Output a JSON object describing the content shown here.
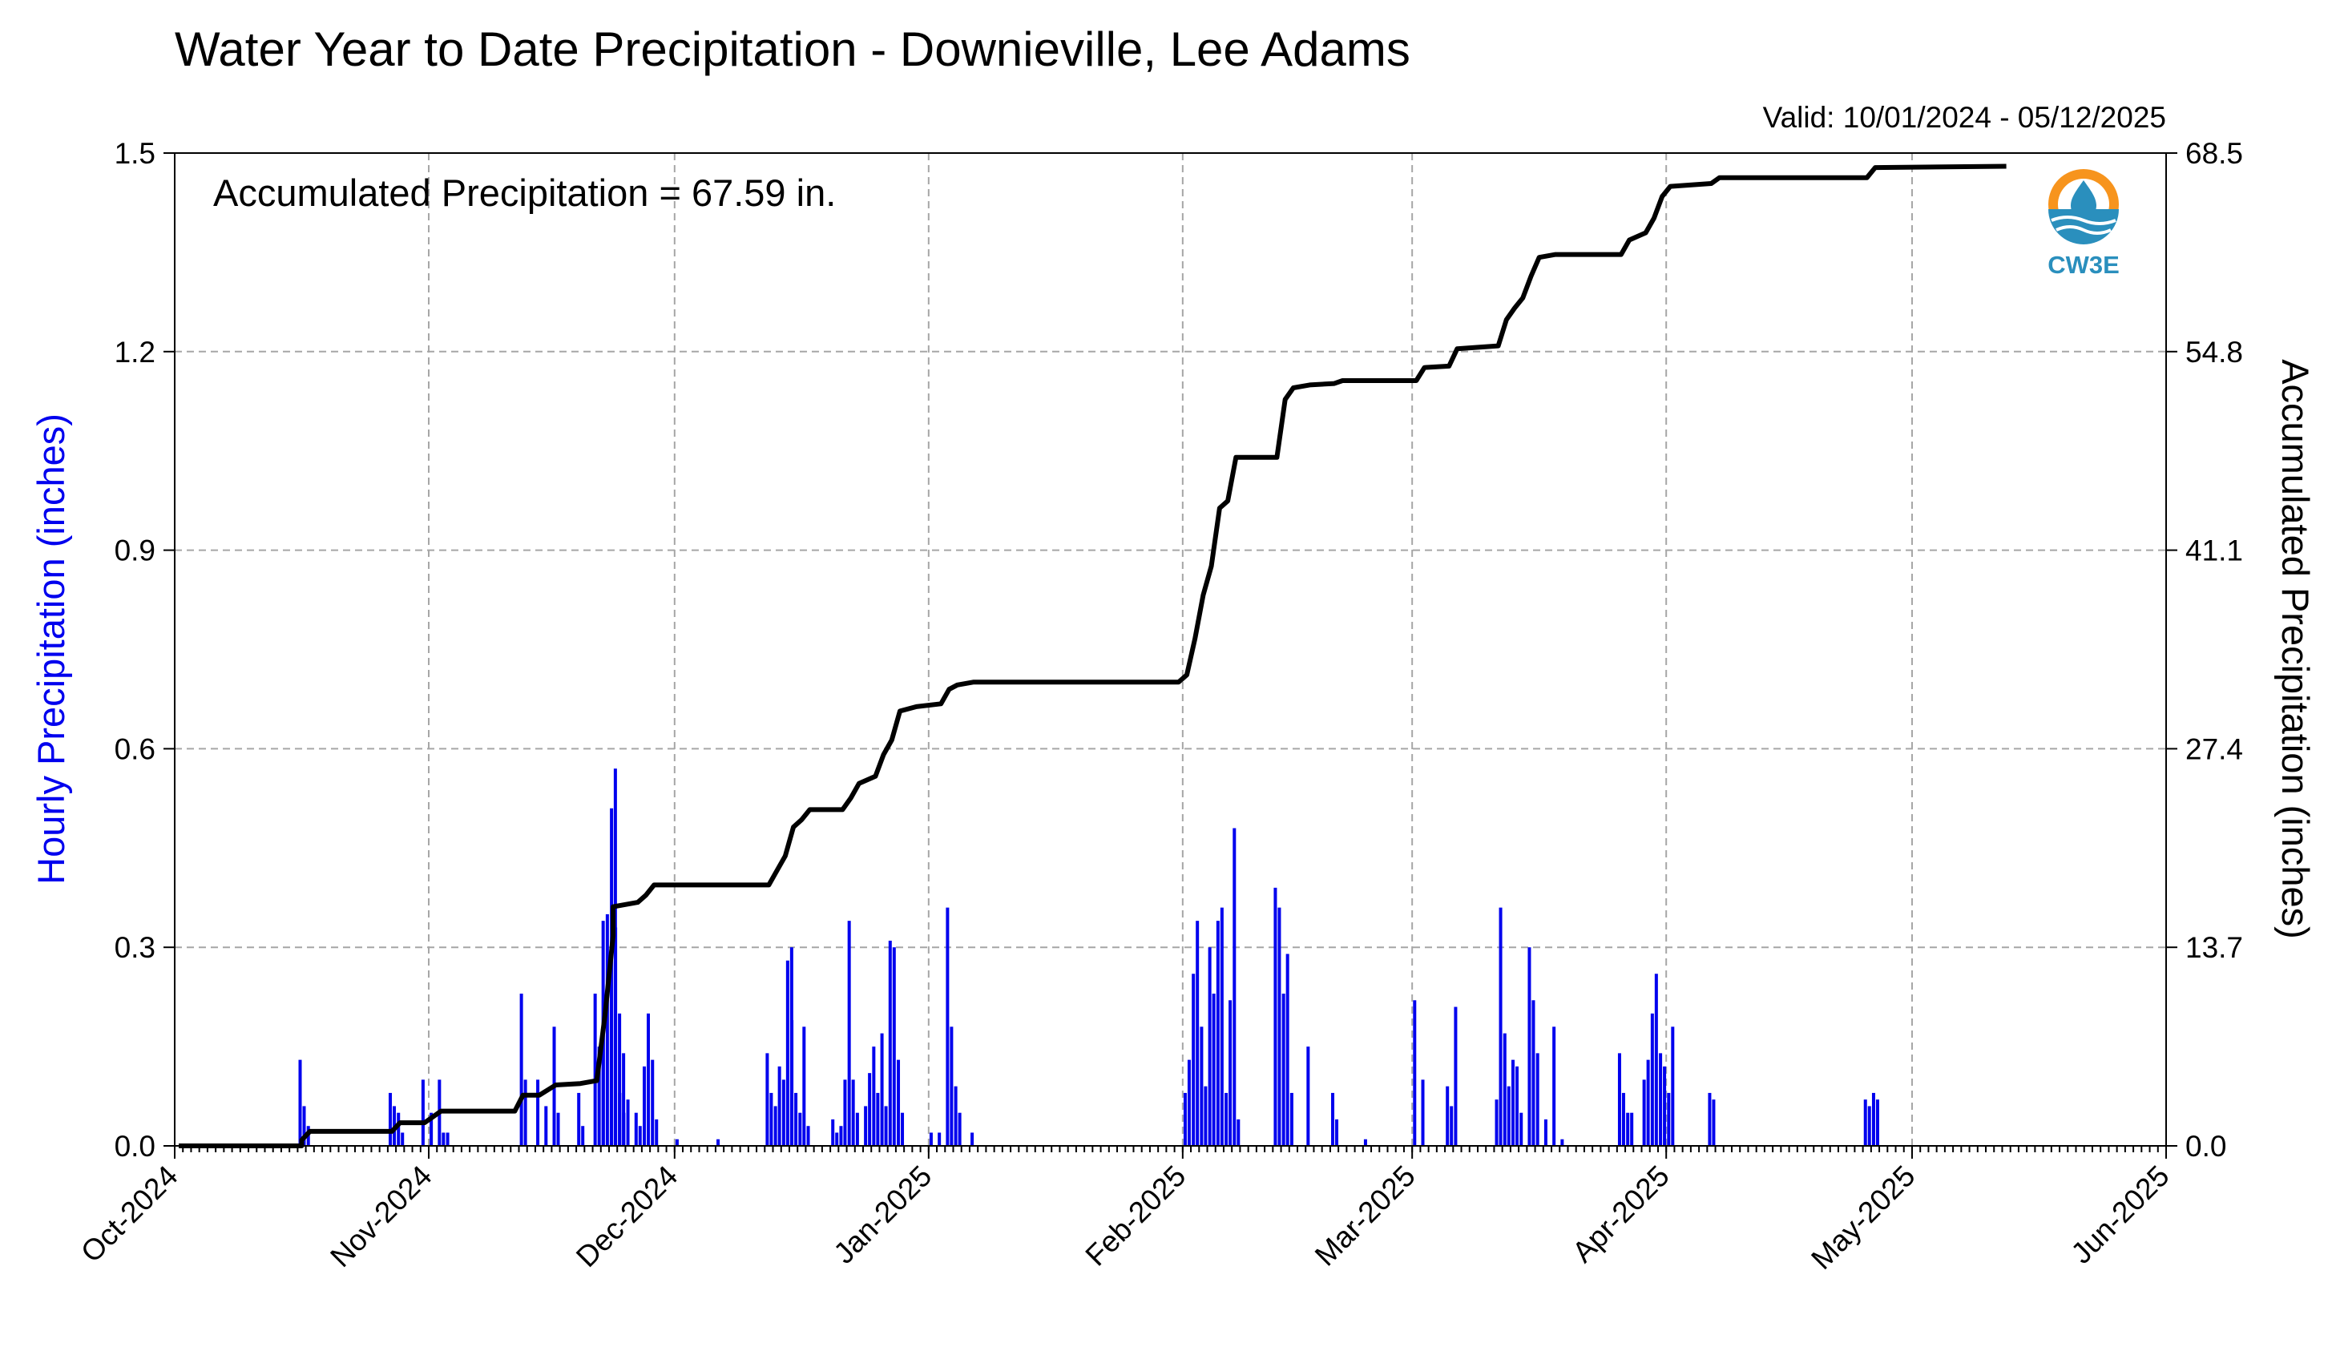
{
  "chart_data": {
    "type": "bar",
    "title": "Water Year to Date Precipitation - Downieville, Lee Adams",
    "subtitle": "Valid: 10/01/2024 - 05/12/2025",
    "annotation": "Accumulated Precipitation = 67.59 in.",
    "logo_text": "CW3E",
    "ylabel_left": "Hourly Precipitation (inches)",
    "ylabel_right": "Accumulated Precipitation (inches)",
    "ylim_left": [
      0,
      1.5
    ],
    "ylim_right": [
      0,
      68.5
    ],
    "yticks_left": [
      "0.0",
      "0.3",
      "0.6",
      "0.9",
      "1.2",
      "1.5"
    ],
    "yticks_right": [
      "0.0",
      "13.7",
      "27.4",
      "41.1",
      "54.8",
      "68.5"
    ],
    "x_start": "2024-10-01",
    "x_end": "2025-06-01",
    "xticks": [
      {
        "label": "Oct-2024",
        "date": "2024-10-01"
      },
      {
        "label": "Nov-2024",
        "date": "2024-11-01"
      },
      {
        "label": "Dec-2024",
        "date": "2024-12-01"
      },
      {
        "label": "Jan-2025",
        "date": "2025-01-01"
      },
      {
        "label": "Feb-2025",
        "date": "2025-02-01"
      },
      {
        "label": "Mar-2025",
        "date": "2025-03-01"
      },
      {
        "label": "Apr-2025",
        "date": "2025-04-01"
      },
      {
        "label": "May-2025",
        "date": "2025-05-01"
      },
      {
        "label": "Jun-2025",
        "date": "2025-06-01"
      }
    ],
    "grid": true,
    "colors": {
      "hourly": "#0000ee",
      "accumulated": "#000000",
      "left_axis_label": "#0000ee"
    },
    "series": [
      {
        "type": "bar",
        "axis": "left",
        "points": [
          [
            "2024-10-16",
            0.13
          ],
          [
            "2024-10-16",
            0.06
          ],
          [
            "2024-10-17",
            0.03
          ],
          [
            "2024-10-27",
            0.08
          ],
          [
            "2024-10-27",
            0.06
          ],
          [
            "2024-10-28",
            0.05
          ],
          [
            "2024-10-28",
            0.02
          ],
          [
            "2024-10-31",
            0.1
          ],
          [
            "2024-11-01",
            0.05
          ],
          [
            "2024-11-02",
            0.1
          ],
          [
            "2024-11-02",
            0.02
          ],
          [
            "2024-11-03",
            0.02
          ],
          [
            "2024-11-12",
            0.23
          ],
          [
            "2024-11-12",
            0.1
          ],
          [
            "2024-11-14",
            0.1
          ],
          [
            "2024-11-15",
            0.06
          ],
          [
            "2024-11-16",
            0.18
          ],
          [
            "2024-11-16",
            0.05
          ],
          [
            "2024-11-19",
            0.08
          ],
          [
            "2024-11-19",
            0.03
          ],
          [
            "2024-11-21",
            0.23
          ],
          [
            "2024-11-21",
            0.15
          ],
          [
            "2024-11-21",
            0.34
          ],
          [
            "2024-11-22",
            0.22
          ],
          [
            "2024-11-22",
            0.35
          ],
          [
            "2024-11-22",
            0.28
          ],
          [
            "2024-11-22",
            0.57
          ],
          [
            "2024-11-23",
            0.51
          ],
          [
            "2024-11-23",
            0.33
          ],
          [
            "2024-11-23",
            0.2
          ],
          [
            "2024-11-23",
            0.14
          ],
          [
            "2024-11-24",
            0.08
          ],
          [
            "2024-11-24",
            0.05
          ],
          [
            "2024-11-25",
            0.07
          ],
          [
            "2024-11-26",
            0.05
          ],
          [
            "2024-11-26",
            0.03
          ],
          [
            "2024-11-27",
            0.12
          ],
          [
            "2024-11-27",
            0.2
          ],
          [
            "2024-11-28",
            0.13
          ],
          [
            "2024-11-28",
            0.04
          ],
          [
            "2024-12-01",
            0.01
          ],
          [
            "2024-12-06",
            0.01
          ],
          [
            "2024-12-12",
            0.14
          ],
          [
            "2024-12-12",
            0.08
          ],
          [
            "2024-12-13",
            0.06
          ],
          [
            "2024-12-13",
            0.12
          ],
          [
            "2024-12-14",
            0.1
          ],
          [
            "2024-12-14",
            0.28
          ],
          [
            "2024-12-14",
            0.3
          ],
          [
            "2024-12-15",
            0.19
          ],
          [
            "2024-12-15",
            0.08
          ],
          [
            "2024-12-16",
            0.05
          ],
          [
            "2024-12-16",
            0.18
          ],
          [
            "2024-12-17",
            0.03
          ],
          [
            "2024-12-20",
            0.04
          ],
          [
            "2024-12-20",
            0.02
          ],
          [
            "2024-12-21",
            0.03
          ],
          [
            "2024-12-21",
            0.1
          ],
          [
            "2024-12-22",
            0.34
          ],
          [
            "2024-12-22",
            0.1
          ],
          [
            "2024-12-23",
            0.05
          ],
          [
            "2024-12-24",
            0.06
          ],
          [
            "2024-12-24",
            0.11
          ],
          [
            "2024-12-25",
            0.15
          ],
          [
            "2024-12-25",
            0.08
          ],
          [
            "2024-12-26",
            0.17
          ],
          [
            "2024-12-26",
            0.06
          ],
          [
            "2024-12-27",
            0.31
          ],
          [
            "2024-12-27",
            0.3
          ],
          [
            "2024-12-28",
            0.13
          ],
          [
            "2024-12-28",
            0.05
          ],
          [
            "2025-01-01",
            0.02
          ],
          [
            "2025-01-02",
            0.02
          ],
          [
            "2025-01-03",
            0.36
          ],
          [
            "2025-01-03",
            0.18
          ],
          [
            "2025-01-04",
            0.09
          ],
          [
            "2025-01-04",
            0.05
          ],
          [
            "2025-01-06",
            0.02
          ],
          [
            "2025-02-01",
            0.08
          ],
          [
            "2025-02-01",
            0.13
          ],
          [
            "2025-02-02",
            0.26
          ],
          [
            "2025-02-02",
            0.34
          ],
          [
            "2025-02-03",
            0.18
          ],
          [
            "2025-02-03",
            0.09
          ],
          [
            "2025-02-04",
            0.3
          ],
          [
            "2025-02-04",
            0.23
          ],
          [
            "2025-02-05",
            0.34
          ],
          [
            "2025-02-05",
            0.36
          ],
          [
            "2025-02-06",
            0.08
          ],
          [
            "2025-02-06",
            0.22
          ],
          [
            "2025-02-07",
            0.48
          ],
          [
            "2025-02-07",
            0.04
          ],
          [
            "2025-02-12",
            0.39
          ],
          [
            "2025-02-12",
            0.36
          ],
          [
            "2025-02-13",
            0.23
          ],
          [
            "2025-02-13",
            0.29
          ],
          [
            "2025-02-14",
            0.08
          ],
          [
            "2025-02-16",
            0.15
          ],
          [
            "2025-02-19",
            0.08
          ],
          [
            "2025-02-19",
            0.04
          ],
          [
            "2025-02-23",
            0.01
          ],
          [
            "2025-03-01",
            0.22
          ],
          [
            "2025-03-02",
            0.1
          ],
          [
            "2025-03-05",
            0.09
          ],
          [
            "2025-03-05",
            0.06
          ],
          [
            "2025-03-06",
            0.21
          ],
          [
            "2025-03-11",
            0.07
          ],
          [
            "2025-03-11",
            0.36
          ],
          [
            "2025-03-12",
            0.17
          ],
          [
            "2025-03-12",
            0.09
          ],
          [
            "2025-03-13",
            0.13
          ],
          [
            "2025-03-13",
            0.12
          ],
          [
            "2025-03-14",
            0.05
          ],
          [
            "2025-03-15",
            0.3
          ],
          [
            "2025-03-15",
            0.22
          ],
          [
            "2025-03-16",
            0.14
          ],
          [
            "2025-03-17",
            0.04
          ],
          [
            "2025-03-18",
            0.18
          ],
          [
            "2025-03-19",
            0.01
          ],
          [
            "2025-03-26",
            0.14
          ],
          [
            "2025-03-26",
            0.08
          ],
          [
            "2025-03-27",
            0.05
          ],
          [
            "2025-03-27",
            0.05
          ],
          [
            "2025-03-29",
            0.1
          ],
          [
            "2025-03-29",
            0.13
          ],
          [
            "2025-03-30",
            0.2
          ],
          [
            "2025-03-30",
            0.26
          ],
          [
            "2025-03-31",
            0.14
          ],
          [
            "2025-03-31",
            0.12
          ],
          [
            "2025-04-01",
            0.08
          ],
          [
            "2025-04-01",
            0.18
          ],
          [
            "2025-04-06",
            0.08
          ],
          [
            "2025-04-06",
            0.07
          ],
          [
            "2025-04-25",
            0.07
          ],
          [
            "2025-04-25",
            0.06
          ],
          [
            "2025-04-26",
            0.08
          ],
          [
            "2025-04-26",
            0.07
          ]
        ]
      },
      {
        "type": "line",
        "axis": "right",
        "points": [
          [
            "2024-10-01",
            0.0
          ],
          [
            "2024-10-16",
            0.0
          ],
          [
            "2024-10-16",
            0.4
          ],
          [
            "2024-10-17",
            1.0
          ],
          [
            "2024-10-27",
            1.0
          ],
          [
            "2024-10-28",
            1.6
          ],
          [
            "2024-10-31",
            1.6
          ],
          [
            "2024-11-02",
            2.4
          ],
          [
            "2024-11-03",
            2.4
          ],
          [
            "2024-11-11",
            2.4
          ],
          [
            "2024-11-12",
            3.5
          ],
          [
            "2024-11-14",
            3.5
          ],
          [
            "2024-11-16",
            4.2
          ],
          [
            "2024-11-19",
            4.3
          ],
          [
            "2024-11-21",
            4.5
          ],
          [
            "2024-11-22",
            9.0
          ],
          [
            "2024-11-23",
            14.5
          ],
          [
            "2024-11-23",
            16.5
          ],
          [
            "2024-11-26",
            16.8
          ],
          [
            "2024-11-27",
            17.3
          ],
          [
            "2024-11-28",
            18.0
          ],
          [
            "2024-12-12",
            18.0
          ],
          [
            "2024-12-13",
            19.0
          ],
          [
            "2024-12-14",
            20.0
          ],
          [
            "2024-12-15",
            22.0
          ],
          [
            "2024-12-16",
            22.5
          ],
          [
            "2024-12-17",
            23.2
          ],
          [
            "2024-12-21",
            23.2
          ],
          [
            "2024-12-22",
            24.0
          ],
          [
            "2024-12-23",
            25.0
          ],
          [
            "2024-12-25",
            25.5
          ],
          [
            "2024-12-26",
            27.0
          ],
          [
            "2024-12-27",
            28.0
          ],
          [
            "2024-12-28",
            30.0
          ],
          [
            "2024-12-30",
            30.3
          ],
          [
            "2025-01-02",
            30.5
          ],
          [
            "2025-01-03",
            31.5
          ],
          [
            "2025-01-04",
            31.8
          ],
          [
            "2025-01-06",
            32.0
          ],
          [
            "2025-01-31",
            32.0
          ],
          [
            "2025-02-01",
            32.5
          ],
          [
            "2025-02-02",
            35.0
          ],
          [
            "2025-02-03",
            38.0
          ],
          [
            "2025-02-04",
            40.0
          ],
          [
            "2025-02-05",
            44.0
          ],
          [
            "2025-02-06",
            44.5
          ],
          [
            "2025-02-07",
            47.5
          ],
          [
            "2025-02-12",
            47.5
          ],
          [
            "2025-02-13",
            51.5
          ],
          [
            "2025-02-14",
            52.3
          ],
          [
            "2025-02-16",
            52.5
          ],
          [
            "2025-02-19",
            52.6
          ],
          [
            "2025-02-20",
            52.8
          ],
          [
            "2025-03-01",
            52.8
          ],
          [
            "2025-03-02",
            53.7
          ],
          [
            "2025-03-05",
            53.8
          ],
          [
            "2025-03-06",
            55.0
          ],
          [
            "2025-03-11",
            55.2
          ],
          [
            "2025-03-12",
            57.0
          ],
          [
            "2025-03-13",
            57.8
          ],
          [
            "2025-03-14",
            58.5
          ],
          [
            "2025-03-15",
            60.0
          ],
          [
            "2025-03-16",
            61.3
          ],
          [
            "2025-03-18",
            61.5
          ],
          [
            "2025-03-26",
            61.5
          ],
          [
            "2025-03-27",
            62.5
          ],
          [
            "2025-03-29",
            63.0
          ],
          [
            "2025-03-30",
            64.0
          ],
          [
            "2025-03-31",
            65.5
          ],
          [
            "2025-04-01",
            66.2
          ],
          [
            "2025-04-06",
            66.4
          ],
          [
            "2025-04-07",
            66.8
          ],
          [
            "2025-04-25",
            66.8
          ],
          [
            "2025-04-26",
            67.5
          ],
          [
            "2025-05-12",
            67.59
          ]
        ]
      }
    ]
  }
}
